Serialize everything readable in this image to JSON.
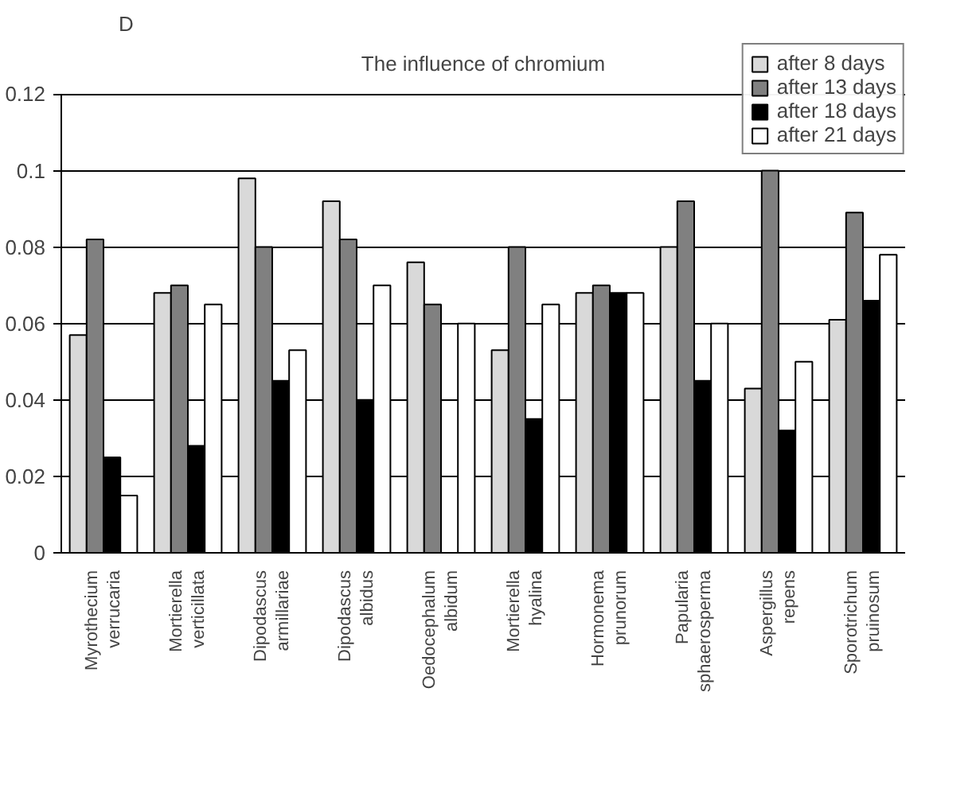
{
  "chart_data": {
    "type": "bar",
    "title": "The influence of chromium",
    "ylabel": "D",
    "categories": [
      "Myrothecium verrucaria",
      "Mortierella verticillata",
      "Dipodascus armillariae",
      "Dipodascus albidus",
      "Oedocephalum albidum",
      "Mortierella hyalina",
      "Hormonema prunorum",
      "Papularia sphaerosperma",
      "Aspergillus repens",
      "Sporotrichum pruinosum"
    ],
    "series": [
      {
        "name": "after 8 days",
        "color": "#d9d9d9",
        "values": [
          0.057,
          0.068,
          0.098,
          0.092,
          0.076,
          0.053,
          0.068,
          0.08,
          0.043,
          0.061
        ]
      },
      {
        "name": "after 13 days",
        "color": "#808080",
        "values": [
          0.082,
          0.07,
          0.08,
          0.082,
          0.065,
          0.08,
          0.07,
          0.092,
          0.1,
          0.089
        ]
      },
      {
        "name": "after 18 days",
        "color": "#000000",
        "values": [
          0.025,
          0.028,
          0.045,
          0.04,
          0,
          0.035,
          0.068,
          0.045,
          0.032,
          0.066
        ]
      },
      {
        "name": "after 21 days",
        "color": "#ffffff",
        "values": [
          0.015,
          0.065,
          0.053,
          0.07,
          0.06,
          0.065,
          0.068,
          0.06,
          0.05,
          0.078
        ]
      }
    ],
    "ylim": [
      0,
      0.12
    ],
    "yticks": [
      0,
      0.02,
      0.04,
      0.06,
      0.08,
      {
        "value": 0.1,
        "label": "0.1"
      },
      0.12
    ],
    "grid": "y",
    "legend": "top right"
  }
}
